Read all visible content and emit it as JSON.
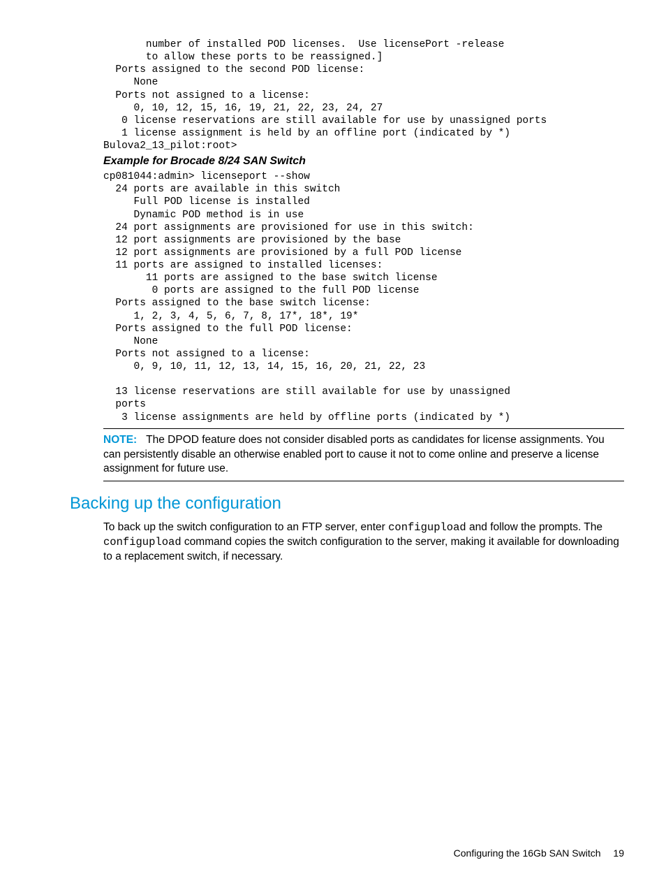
{
  "colors": {
    "accent": "#0096d6",
    "text": "#000000",
    "background": "#ffffff",
    "rule": "#000000"
  },
  "typography": {
    "body_font": "Futura / Trebuchet MS",
    "mono_font": "Courier New",
    "body_size_pt": 11,
    "code_size_pt": 10.5,
    "h2_size_pt": 18
  },
  "code_block_1": "       number of installed POD licenses.  Use licensePort -release\n       to allow these ports to be reassigned.]\n  Ports assigned to the second POD license:\n     None\n  Ports not assigned to a license:\n     0, 10, 12, 15, 16, 19, 21, 22, 23, 24, 27\n   0 license reservations are still available for use by unassigned ports\n   1 license assignment is held by an offline port (indicated by *)\nBulova2_13_pilot:root>",
  "example_heading": "Example for Brocade 8/24 SAN Switch",
  "code_block_2": "cp081044:admin> licenseport --show\n  24 ports are available in this switch\n     Full POD license is installed\n     Dynamic POD method is in use\n  24 port assignments are provisioned for use in this switch:\n  12 port assignments are provisioned by the base\n  12 port assignments are provisioned by a full POD license\n  11 ports are assigned to installed licenses:\n       11 ports are assigned to the base switch license\n        0 ports are assigned to the full POD license\n  Ports assigned to the base switch license:\n     1, 2, 3, 4, 5, 6, 7, 8, 17*, 18*, 19*\n  Ports assigned to the full POD license:\n     None\n  Ports not assigned to a license:\n     0, 9, 10, 11, 12, 13, 14, 15, 16, 20, 21, 22, 23\n\n  13 license reservations are still available for use by unassigned\n  ports\n   3 license assignments are held by offline ports (indicated by *)",
  "note": {
    "label": "NOTE:",
    "text": "The DPOD feature does not consider disabled ports as candidates for license assignments. You can persistently disable an otherwise enabled port to cause it not to come online and preserve a license assignment for future use."
  },
  "section_heading": "Backing up the configuration",
  "body": {
    "p1_pre": "To back up the switch configuration to an FTP server, enter ",
    "p1_cmd1": "configupload",
    "p1_mid": " and follow the prompts. The ",
    "p1_cmd2": "configupload",
    "p1_post": " command copies the switch configuration to the server, making it available for downloading to a replacement switch, if necessary."
  },
  "footer": {
    "text": "Configuring the 16Gb SAN Switch",
    "page": "19"
  }
}
